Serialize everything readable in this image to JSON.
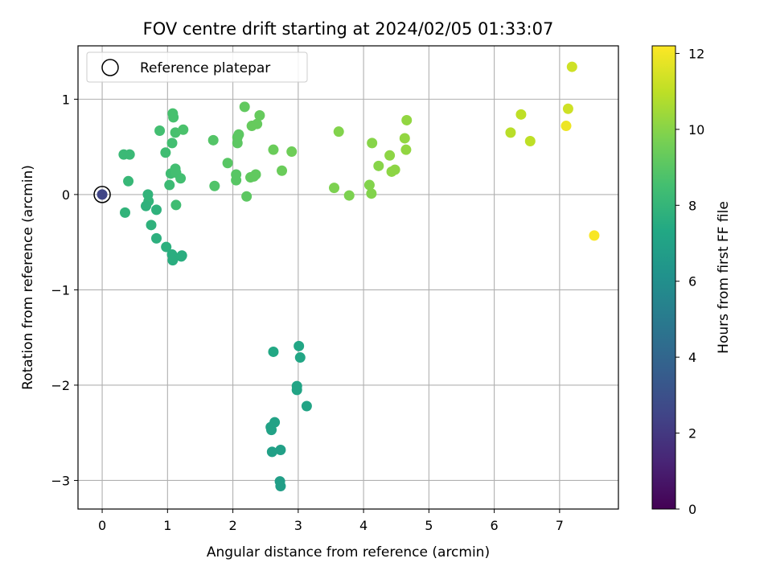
{
  "chart_data": {
    "type": "scatter",
    "title": "FOV centre drift starting at 2024/02/05 01:33:07",
    "xlabel": "Angular distance from reference (arcmin)",
    "ylabel": "Rotation from reference (arcmin)",
    "xlim": [
      -0.37,
      7.9
    ],
    "ylim": [
      -3.3,
      1.56
    ],
    "xticks": [
      "0",
      "1",
      "2",
      "3",
      "4",
      "5",
      "6",
      "7"
    ],
    "yticks": [
      "1",
      "0",
      "−1",
      "−2",
      "−3"
    ],
    "xtick_values": [
      0,
      1,
      2,
      3,
      4,
      5,
      6,
      7
    ],
    "ytick_values": [
      1,
      0,
      -1,
      -2,
      -3
    ],
    "grid": true,
    "legend": {
      "position": "top-left",
      "label": "Reference platepar"
    },
    "colorbar": {
      "label": "Hours from first FF file",
      "range": [
        0,
        12.2
      ],
      "ticks": [
        "0",
        "2",
        "4",
        "6",
        "8",
        "10",
        "12"
      ],
      "tick_values": [
        0,
        2,
        4,
        6,
        8,
        10,
        12
      ],
      "colormap": "viridis"
    },
    "reference_point": {
      "x": 0,
      "y": 0,
      "c": 2.5
    },
    "points": [
      {
        "x": 0.33,
        "y": 0.42,
        "c": 8.2
      },
      {
        "x": 0.42,
        "y": 0.42,
        "c": 8.2
      },
      {
        "x": 0.4,
        "y": 0.14,
        "c": 8.1
      },
      {
        "x": 0.35,
        "y": -0.19,
        "c": 7.9
      },
      {
        "x": 0.7,
        "y": 0.0,
        "c": 7.9
      },
      {
        "x": 0.71,
        "y": -0.07,
        "c": 7.9
      },
      {
        "x": 0.67,
        "y": -0.12,
        "c": 7.8
      },
      {
        "x": 0.83,
        "y": -0.16,
        "c": 7.8
      },
      {
        "x": 0.75,
        "y": -0.32,
        "c": 7.8
      },
      {
        "x": 0.83,
        "y": -0.46,
        "c": 7.7
      },
      {
        "x": 0.98,
        "y": -0.55,
        "c": 7.7
      },
      {
        "x": 1.07,
        "y": -0.63,
        "c": 7.6
      },
      {
        "x": 1.08,
        "y": -0.69,
        "c": 7.6
      },
      {
        "x": 1.22,
        "y": -0.64,
        "c": 7.6
      },
      {
        "x": 1.21,
        "y": -0.65,
        "c": 7.6
      },
      {
        "x": 0.88,
        "y": 0.67,
        "c": 8.5
      },
      {
        "x": 0.97,
        "y": 0.44,
        "c": 8.4
      },
      {
        "x": 1.03,
        "y": 0.1,
        "c": 8.3
      },
      {
        "x": 1.05,
        "y": 0.22,
        "c": 8.4
      },
      {
        "x": 1.07,
        "y": 0.54,
        "c": 8.5
      },
      {
        "x": 1.08,
        "y": 0.85,
        "c": 8.6
      },
      {
        "x": 1.09,
        "y": 0.81,
        "c": 8.6
      },
      {
        "x": 1.12,
        "y": 0.65,
        "c": 8.6
      },
      {
        "x": 1.12,
        "y": 0.27,
        "c": 8.5
      },
      {
        "x": 1.13,
        "y": 0.23,
        "c": 8.5
      },
      {
        "x": 1.13,
        "y": -0.11,
        "c": 8.4
      },
      {
        "x": 1.2,
        "y": 0.17,
        "c": 8.5
      },
      {
        "x": 1.24,
        "y": 0.68,
        "c": 8.7
      },
      {
        "x": 1.7,
        "y": 0.57,
        "c": 8.9
      },
      {
        "x": 1.72,
        "y": 0.09,
        "c": 8.8
      },
      {
        "x": 1.92,
        "y": 0.33,
        "c": 9.0
      },
      {
        "x": 2.05,
        "y": 0.21,
        "c": 9.0
      },
      {
        "x": 2.05,
        "y": 0.15,
        "c": 9.0
      },
      {
        "x": 2.07,
        "y": 0.6,
        "c": 9.1
      },
      {
        "x": 2.07,
        "y": 0.54,
        "c": 9.1
      },
      {
        "x": 2.09,
        "y": 0.63,
        "c": 9.1
      },
      {
        "x": 2.18,
        "y": 0.92,
        "c": 9.2
      },
      {
        "x": 2.21,
        "y": -0.02,
        "c": 9.1
      },
      {
        "x": 2.27,
        "y": 0.18,
        "c": 9.2
      },
      {
        "x": 2.29,
        "y": 0.72,
        "c": 9.3
      },
      {
        "x": 2.32,
        "y": 0.19,
        "c": 9.2
      },
      {
        "x": 2.35,
        "y": 0.21,
        "c": 9.2
      },
      {
        "x": 2.37,
        "y": 0.74,
        "c": 9.3
      },
      {
        "x": 2.41,
        "y": 0.83,
        "c": 9.3
      },
      {
        "x": 2.62,
        "y": 0.47,
        "c": 9.4
      },
      {
        "x": 2.75,
        "y": 0.25,
        "c": 9.4
      },
      {
        "x": 2.9,
        "y": 0.45,
        "c": 9.5
      },
      {
        "x": 2.62,
        "y": -1.65,
        "c": 7.3
      },
      {
        "x": 3.01,
        "y": -1.59,
        "c": 7.2
      },
      {
        "x": 3.03,
        "y": -1.71,
        "c": 7.2
      },
      {
        "x": 2.98,
        "y": -2.01,
        "c": 7.1
      },
      {
        "x": 2.98,
        "y": -2.05,
        "c": 7.1
      },
      {
        "x": 3.13,
        "y": -2.22,
        "c": 7.1
      },
      {
        "x": 2.58,
        "y": -2.44,
        "c": 7.0
      },
      {
        "x": 2.59,
        "y": -2.47,
        "c": 7.0
      },
      {
        "x": 2.64,
        "y": -2.39,
        "c": 7.0
      },
      {
        "x": 2.6,
        "y": -2.7,
        "c": 6.9
      },
      {
        "x": 2.73,
        "y": -2.68,
        "c": 6.9
      },
      {
        "x": 2.72,
        "y": -3.01,
        "c": 6.8
      },
      {
        "x": 2.73,
        "y": -3.06,
        "c": 6.8
      },
      {
        "x": 3.55,
        "y": 0.07,
        "c": 9.8
      },
      {
        "x": 3.62,
        "y": 0.66,
        "c": 9.9
      },
      {
        "x": 3.78,
        "y": -0.01,
        "c": 9.8
      },
      {
        "x": 4.09,
        "y": 0.1,
        "c": 9.9
      },
      {
        "x": 4.12,
        "y": 0.01,
        "c": 9.9
      },
      {
        "x": 4.13,
        "y": 0.54,
        "c": 10.0
      },
      {
        "x": 4.23,
        "y": 0.3,
        "c": 10.0
      },
      {
        "x": 4.4,
        "y": 0.41,
        "c": 10.1
      },
      {
        "x": 4.43,
        "y": 0.24,
        "c": 10.1
      },
      {
        "x": 4.48,
        "y": 0.26,
        "c": 10.1
      },
      {
        "x": 4.63,
        "y": 0.59,
        "c": 10.2
      },
      {
        "x": 4.65,
        "y": 0.47,
        "c": 10.2
      },
      {
        "x": 4.66,
        "y": 0.78,
        "c": 10.2
      },
      {
        "x": 6.25,
        "y": 0.65,
        "c": 10.9
      },
      {
        "x": 6.41,
        "y": 0.84,
        "c": 11.0
      },
      {
        "x": 6.55,
        "y": 0.56,
        "c": 11.0
      },
      {
        "x": 7.1,
        "y": 0.72,
        "c": 11.9
      },
      {
        "x": 7.13,
        "y": 0.9,
        "c": 11.3
      },
      {
        "x": 7.19,
        "y": 1.34,
        "c": 11.3
      },
      {
        "x": 7.53,
        "y": -0.43,
        "c": 12.1
      }
    ]
  }
}
